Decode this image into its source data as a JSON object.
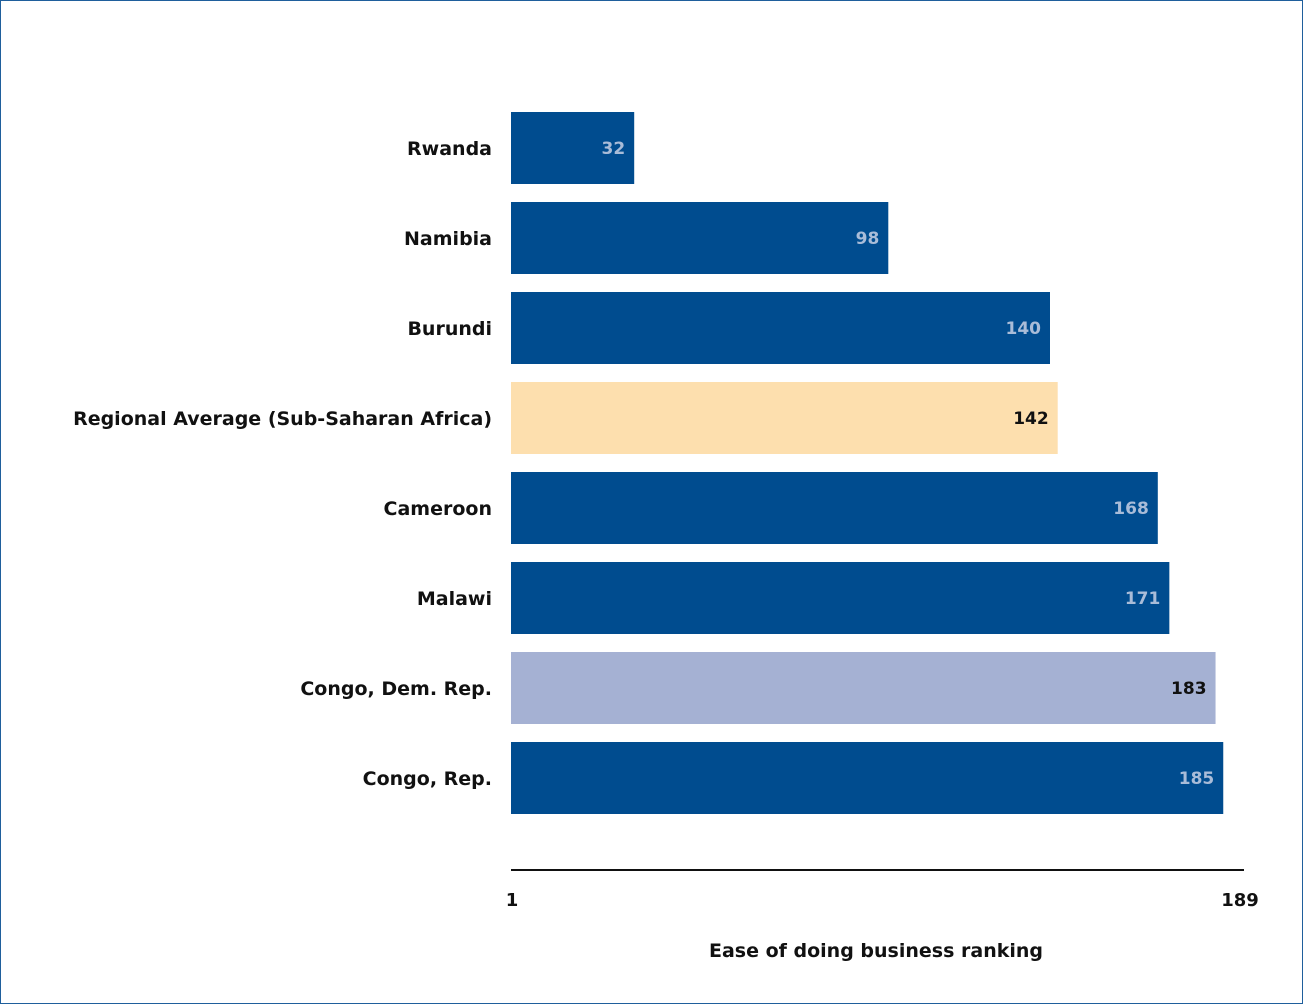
{
  "chart_data": {
    "type": "bar",
    "orientation": "horizontal",
    "title": "",
    "xlabel": "Ease of doing business ranking",
    "ylabel": "",
    "xlim": [
      1,
      189
    ],
    "xticks": [
      "1",
      "189"
    ],
    "categories": [
      "Rwanda",
      "Namibia",
      "Burundi",
      "Regional Average (Sub-Saharan Africa)",
      "Cameroon",
      "Malawi",
      "Congo, Dem. Rep.",
      "Congo, Rep."
    ],
    "values": [
      32,
      98,
      140,
      142,
      168,
      171,
      183,
      185
    ],
    "bar_colors": [
      "#004c8f",
      "#004c8f",
      "#004c8f",
      "#fddfae",
      "#004c8f",
      "#004c8f",
      "#a5b1d3",
      "#004c8f"
    ],
    "label_colors": [
      "#a9bcd8",
      "#a9bcd8",
      "#a9bcd8",
      "#111111",
      "#a9bcd8",
      "#a9bcd8",
      "#111111",
      "#a9bcd8"
    ],
    "grid": false,
    "legend": "none"
  },
  "colors": {
    "border": "#1f5f9c",
    "axis": "#111111"
  }
}
